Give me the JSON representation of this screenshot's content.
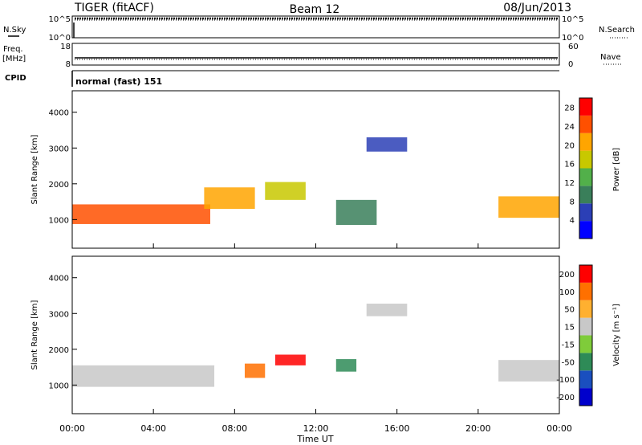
{
  "header": {
    "title": "TIGER (fitACF)",
    "beam": "Beam 12",
    "date": "08/Jun/2013"
  },
  "top_panels": {
    "nsky_label": "N.Sky",
    "nsky_ticks": [
      "10^5",
      "10^0"
    ],
    "nsearch_label": "N.Search",
    "nsearch_ticks": [
      "10^5",
      "10^0"
    ],
    "freq_label_1": "Freq.",
    "freq_label_2": "[MHz]",
    "freq_ticks": [
      "18",
      "8"
    ],
    "nave_label": "Nave",
    "nave_ticks": [
      "60",
      "0"
    ],
    "cpid_label": "CPID",
    "cpid_value": "normal (fast) 151"
  },
  "colors": {
    "power_scale": [
      "#0000ff",
      "#2b3fb6",
      "#3a7f5a",
      "#52b04a",
      "#c8c800",
      "#ffa500",
      "#ff5000",
      "#ff0000"
    ],
    "velocity_scale": [
      "#0000cc",
      "#1a4fbf",
      "#2e8b57",
      "#7fcc3a",
      "#c8c8c8",
      "#ffb030",
      "#ff7000",
      "#ff0000"
    ]
  },
  "chart_data": [
    {
      "type": "heatmap",
      "name": "power",
      "ylabel": "Slant Range [km]",
      "yticks": [
        "4000",
        "3000",
        "2000",
        "1000"
      ],
      "ylim": [
        200,
        4600
      ],
      "colorbar_label": "Power [dB]",
      "colorbar_ticks": [
        "28",
        "24",
        "20",
        "16",
        "12",
        "8",
        "4"
      ],
      "colorbar_range": [
        0,
        30
      ],
      "features": [
        {
          "t_start": 0.0,
          "t_end": 6.8,
          "range_km": 1150,
          "width_km": 550,
          "level": 26
        },
        {
          "t_start": 6.5,
          "t_end": 9.0,
          "range_km": 1600,
          "width_km": 600,
          "level": 20
        },
        {
          "t_start": 9.5,
          "t_end": 11.5,
          "range_km": 1800,
          "width_km": 500,
          "level": 16
        },
        {
          "t_start": 13.0,
          "t_end": 15.0,
          "range_km": 1200,
          "width_km": 700,
          "level": 10
        },
        {
          "t_start": 14.5,
          "t_end": 16.5,
          "range_km": 3100,
          "width_km": 400,
          "level": 6
        },
        {
          "t_start": 21.0,
          "t_end": 24.0,
          "range_km": 1350,
          "width_km": 600,
          "level": 22
        }
      ]
    },
    {
      "type": "heatmap",
      "name": "velocity",
      "ylabel": "Slant Range [km]",
      "yticks": [
        "4000",
        "3000",
        "2000",
        "1000"
      ],
      "ylim": [
        200,
        4600
      ],
      "colorbar_label": "Velocity [m s⁻¹]",
      "colorbar_ticks": [
        "200",
        "100",
        "50",
        "15",
        "-15",
        "-50",
        "-100",
        "-200"
      ],
      "colorbar_range": [
        -250,
        250
      ],
      "xlabel": "Time UT",
      "xticks": [
        "00:00",
        "04:00",
        "08:00",
        "12:00",
        "16:00",
        "20:00",
        "00:00"
      ],
      "xlim_hours": [
        0,
        24
      ],
      "features": [
        {
          "t_start": 0.0,
          "t_end": 7.0,
          "range_km": 1250,
          "width_km": 600,
          "velocity": 0
        },
        {
          "t_start": 8.5,
          "t_end": 9.5,
          "range_km": 1400,
          "width_km": 400,
          "velocity": 180
        },
        {
          "t_start": 10.0,
          "t_end": 11.5,
          "range_km": 1700,
          "width_km": 300,
          "velocity": 200
        },
        {
          "t_start": 13.0,
          "t_end": 14.0,
          "range_km": 1550,
          "width_km": 350,
          "velocity": -120
        },
        {
          "t_start": 14.5,
          "t_end": 16.5,
          "range_km": 3100,
          "width_km": 350,
          "velocity": 0
        },
        {
          "t_start": 21.0,
          "t_end": 24.0,
          "range_km": 1400,
          "width_km": 600,
          "velocity": 20
        }
      ]
    }
  ]
}
